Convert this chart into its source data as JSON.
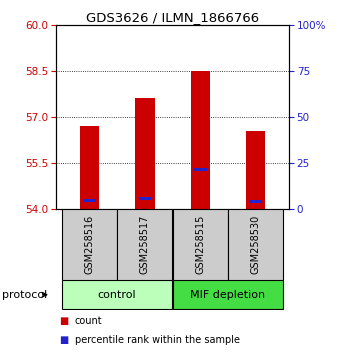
{
  "title": "GDS3626 / ILMN_1866766",
  "samples": [
    "GSM258516",
    "GSM258517",
    "GSM258515",
    "GSM258530"
  ],
  "bar_bottom": 54,
  "bar_tops": [
    56.7,
    57.6,
    58.5,
    56.55
  ],
  "percentile_values": [
    54.28,
    54.35,
    55.28,
    54.25
  ],
  "ylim": [
    54,
    60
  ],
  "yticks_left": [
    54,
    55.5,
    57,
    58.5,
    60
  ],
  "yticks_right": [
    0,
    25,
    50,
    75,
    100
  ],
  "bar_color": "#cc0000",
  "percentile_color": "#2222cc",
  "control_color": "#bbffbb",
  "mif_color": "#44dd44",
  "label_area_color": "#cccccc",
  "group_labels": [
    "control",
    "MIF depletion"
  ],
  "legend_count_label": "count",
  "legend_pct_label": "percentile rank within the sample",
  "bar_width": 0.35
}
